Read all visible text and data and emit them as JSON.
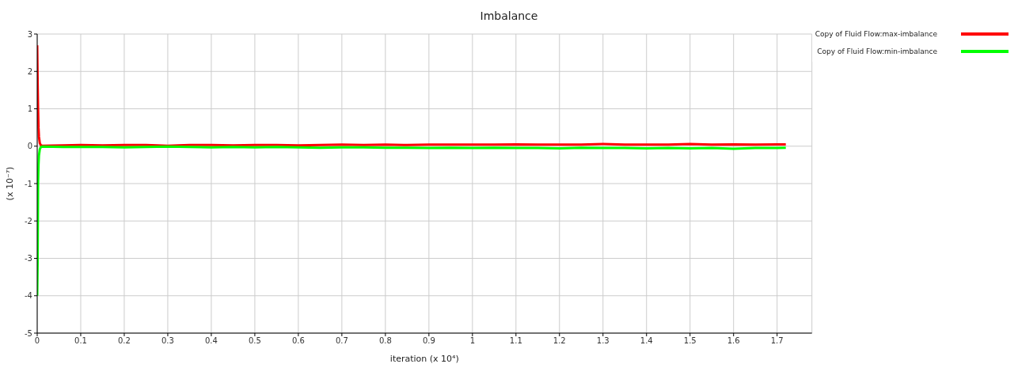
{
  "chart_data": {
    "type": "line",
    "title": "Imbalance",
    "xlabel": "iteration (x 10⁴)",
    "ylabel": "(x 10⁻⁷)",
    "xlim": [
      0,
      1.78
    ],
    "xticks": [
      0,
      0.1,
      0.2,
      0.3,
      0.4,
      0.5,
      0.6,
      0.7,
      0.8,
      0.9,
      1,
      1.1,
      1.2,
      1.3,
      1.4,
      1.5,
      1.6,
      1.7
    ],
    "ylim": [
      -5,
      3
    ],
    "yticks": [
      -5,
      -4,
      -3,
      -2,
      -1,
      0,
      1,
      2,
      3
    ],
    "grid": true,
    "legend": "top right",
    "marker": "none",
    "line_style": "solid",
    "series": [
      {
        "name": "Copy of Fluid Flow:max-imbalance",
        "color": "#ff0000",
        "x": [
          0,
          0.001,
          0.002,
          0.003,
          0.004,
          0.006,
          0.008,
          0.012,
          0.06,
          0.1,
          0.15,
          0.2,
          0.25,
          0.3,
          0.35,
          0.4,
          0.45,
          0.5,
          0.55,
          0.6,
          0.65,
          0.7,
          0.75,
          0.8,
          0.85,
          0.9,
          0.95,
          1,
          1.05,
          1.1,
          1.15,
          1.2,
          1.25,
          1.3,
          1.35,
          1.4,
          1.45,
          1.5,
          1.55,
          1.6,
          1.65,
          1.7,
          1.72
        ],
        "values": [
          2.7,
          1.7,
          1.0,
          0.5,
          0.25,
          0.08,
          0.03,
          0.01,
          0.02,
          0.03,
          0.02,
          0.03,
          0.03,
          0.01,
          0.03,
          0.03,
          0.02,
          0.03,
          0.03,
          0.02,
          0.03,
          0.04,
          0.03,
          0.04,
          0.03,
          0.04,
          0.04,
          0.04,
          0.04,
          0.05,
          0.04,
          0.04,
          0.04,
          0.06,
          0.04,
          0.04,
          0.04,
          0.06,
          0.04,
          0.05,
          0.04,
          0.05,
          0.05
        ]
      },
      {
        "name": "Copy of Fluid Flow:min-imbalance",
        "color": "#00ff00",
        "x": [
          0,
          0.001,
          0.002,
          0.003,
          0.004,
          0.006,
          0.008,
          0.012,
          0.06,
          0.1,
          0.15,
          0.2,
          0.25,
          0.3,
          0.35,
          0.4,
          0.45,
          0.5,
          0.55,
          0.6,
          0.65,
          0.7,
          0.75,
          0.8,
          0.85,
          0.9,
          0.95,
          1,
          1.05,
          1.1,
          1.15,
          1.2,
          1.25,
          1.3,
          1.35,
          1.4,
          1.45,
          1.5,
          1.55,
          1.6,
          1.65,
          1.7,
          1.72
        ],
        "values": [
          -4.0,
          -3.0,
          -1.0,
          -0.5,
          -0.25,
          -0.08,
          -0.03,
          -0.01,
          -0.02,
          -0.02,
          -0.02,
          -0.03,
          -0.02,
          -0.01,
          -0.02,
          -0.03,
          -0.02,
          -0.03,
          -0.02,
          -0.03,
          -0.04,
          -0.03,
          -0.03,
          -0.04,
          -0.04,
          -0.05,
          -0.04,
          -0.05,
          -0.04,
          -0.05,
          -0.05,
          -0.06,
          -0.04,
          -0.05,
          -0.05,
          -0.06,
          -0.05,
          -0.06,
          -0.05,
          -0.07,
          -0.05,
          -0.05,
          -0.04
        ]
      }
    ]
  }
}
